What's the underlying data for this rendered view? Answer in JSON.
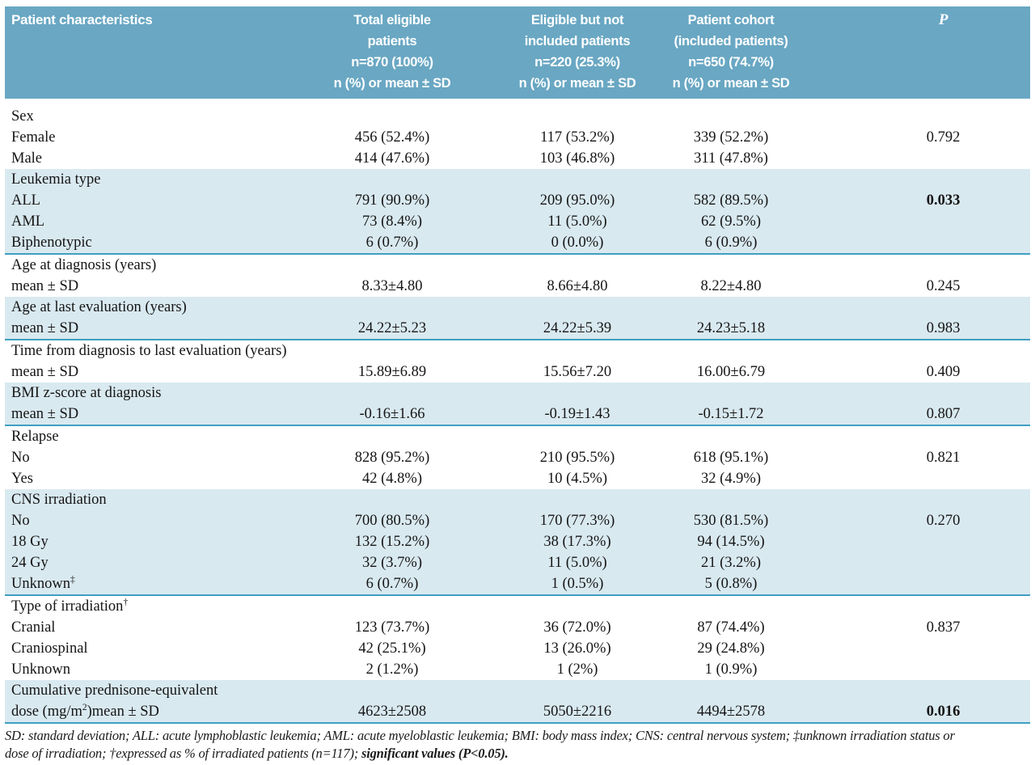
{
  "table": {
    "columns": [
      {
        "label": "Patient characteristics"
      },
      {
        "name": "total-eligible",
        "lines": [
          "Total eligible",
          "patients",
          "n=870 (100%)",
          "n (%) or mean ± SD"
        ]
      },
      {
        "name": "eligible-not-included",
        "lines": [
          "Eligible but not",
          "included patients",
          "n=220 (25.3%)",
          "n (%) or mean ± SD"
        ]
      },
      {
        "name": "patient-cohort",
        "lines": [
          "Patient cohort",
          "(included patients)",
          "n=650 (74.7%)",
          "n (%) or mean ± SD"
        ]
      },
      {
        "label": "P"
      }
    ],
    "sections": [
      {
        "shaded": false,
        "rows": [
          {
            "label": "Sex"
          },
          {
            "label": "Female",
            "total": "456 (52.4%)",
            "not_included": "117 (53.2%)",
            "cohort": "339 (52.2%)",
            "p": "0.792"
          },
          {
            "label": "Male",
            "total": "414 (47.6%)",
            "not_included": "103 (46.8%)",
            "cohort": "311 (47.8%)"
          }
        ]
      },
      {
        "shaded": true,
        "rows": [
          {
            "label": "Leukemia type"
          },
          {
            "label": "ALL",
            "total": "791 (90.9%)",
            "not_included": "209 (95.0%)",
            "cohort": "582 (89.5%)",
            "p": "0.033",
            "p_bold": true
          },
          {
            "label": "AML",
            "total": "73 (8.4%)",
            "not_included": "11 (5.0%)",
            "cohort": "62 (9.5%)"
          },
          {
            "label": "Biphenotypic",
            "total": "6 (0.7%)",
            "not_included": "0 (0.0%)",
            "cohort": "6 (0.9%)"
          }
        ]
      },
      {
        "shaded": false,
        "rows": [
          {
            "label": "Age at diagnosis (years)"
          },
          {
            "label": "mean ± SD",
            "total": "8.33±4.80",
            "not_included": "8.66±4.80",
            "cohort": "8.22±4.80",
            "p": "0.245"
          }
        ]
      },
      {
        "shaded": true,
        "rows": [
          {
            "label": "Age at last evaluation (years)"
          },
          {
            "label": "mean ± SD",
            "total": "24.22±5.23",
            "not_included": "24.22±5.39",
            "cohort": "24.23±5.18",
            "p": "0.983"
          }
        ]
      },
      {
        "shaded": false,
        "rows": [
          {
            "label": "Time from diagnosis to last evaluation (years)"
          },
          {
            "label": "mean ± SD",
            "total": "15.89±6.89",
            "not_included": "15.56±7.20",
            "cohort": "16.00±6.79",
            "p": "0.409"
          }
        ]
      },
      {
        "shaded": true,
        "rows": [
          {
            "label": "BMI z-score at diagnosis"
          },
          {
            "label": "mean ± SD",
            "total": "-0.16±1.66",
            "not_included": "-0.19±1.43",
            "cohort": "-0.15±1.72",
            "p": "0.807"
          }
        ]
      },
      {
        "shaded": false,
        "rows": [
          {
            "label": "Relapse"
          },
          {
            "label": "No",
            "total": "828 (95.2%)",
            "not_included": "210 (95.5%)",
            "cohort": "618 (95.1%)",
            "p": "0.821"
          },
          {
            "label": "Yes",
            "total": "42 (4.8%)",
            "not_included": "10 (4.5%)",
            "cohort": "32 (4.9%)"
          }
        ]
      },
      {
        "shaded": true,
        "rows": [
          {
            "label": "CNS irradiation"
          },
          {
            "label": "No",
            "total": "700 (80.5%)",
            "not_included": "170 (77.3%)",
            "cohort": "530 (81.5%)",
            "p": "0.270"
          },
          {
            "label": "18 Gy",
            "total": "132 (15.2%)",
            "not_included": "38 (17.3%)",
            "cohort": "94 (14.5%)"
          },
          {
            "label": "24 Gy",
            "total": "32 (3.7%)",
            "not_included": "11 (5.0%)",
            "cohort": "21 (3.2%)"
          },
          {
            "label": "Unknown",
            "sup": "‡",
            "total": "6 (0.7%)",
            "not_included": "1 (0.5%)",
            "cohort": "5 (0.8%)"
          }
        ]
      },
      {
        "shaded": false,
        "rows": [
          {
            "label": "Type of irradiation",
            "sup": "†"
          },
          {
            "label": "Cranial",
            "total": "123 (73.7%)",
            "not_included": "36 (72.0%)",
            "cohort": "87 (74.4%)",
            "p": "0.837"
          },
          {
            "label": "Craniospinal",
            "total": "42 (25.1%)",
            "not_included": "13 (26.0%)",
            "cohort": "29 (24.8%)"
          },
          {
            "label": "Unknown",
            "total": "2 (1.2%)",
            "not_included": "1 (2%)",
            "cohort": "1 (0.9%)"
          }
        ]
      },
      {
        "shaded": true,
        "rows": [
          {
            "label": "Cumulative prednisone-equivalent"
          },
          {
            "label": "dose (mg/m",
            "sup": "2",
            "after": ")mean ± SD",
            "total": "4623±2508",
            "not_included": "5050±2216",
            "cohort": "4494±2578",
            "p": "0.016",
            "p_bold": true
          }
        ]
      }
    ],
    "footnote": {
      "line1": "SD: standard deviation; ALL: acute lymphoblastic leukemia; AML: acute myeloblastic leukemia; BMI: body mass index; CNS: central nervous system; ‡unknown irradiation status or",
      "line2_normal": "dose of irradiation; †expressed as % of irradiated patients (n=117); ",
      "line2_bold": "significant values (P<0.05)."
    },
    "colors": {
      "header_bg": "#69a7c3",
      "shaded_row_bg": "#d9e9f0",
      "divider_line": "#3f9fc1"
    }
  }
}
